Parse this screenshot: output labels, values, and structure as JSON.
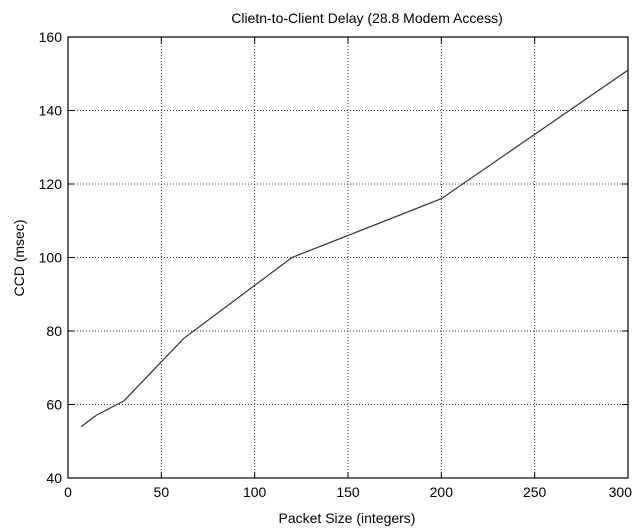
{
  "chart_data": {
    "type": "line",
    "title": "Clietn-to-Client Delay (28.8 Modem Access)",
    "xlabel": "Packet Size (integers)",
    "ylabel": "CCD (msec)",
    "xlim": [
      0,
      300
    ],
    "ylim": [
      40,
      160
    ],
    "xticks": [
      0,
      50,
      100,
      150,
      200,
      250,
      300
    ],
    "yticks": [
      40,
      60,
      80,
      100,
      120,
      140,
      160
    ],
    "grid": true,
    "series": [
      {
        "color": "#333333",
        "x": [
          7,
          15,
          30,
          62,
          120,
          200,
          300
        ],
        "y": [
          54,
          57,
          61,
          78,
          100,
          116,
          151
        ]
      }
    ]
  }
}
